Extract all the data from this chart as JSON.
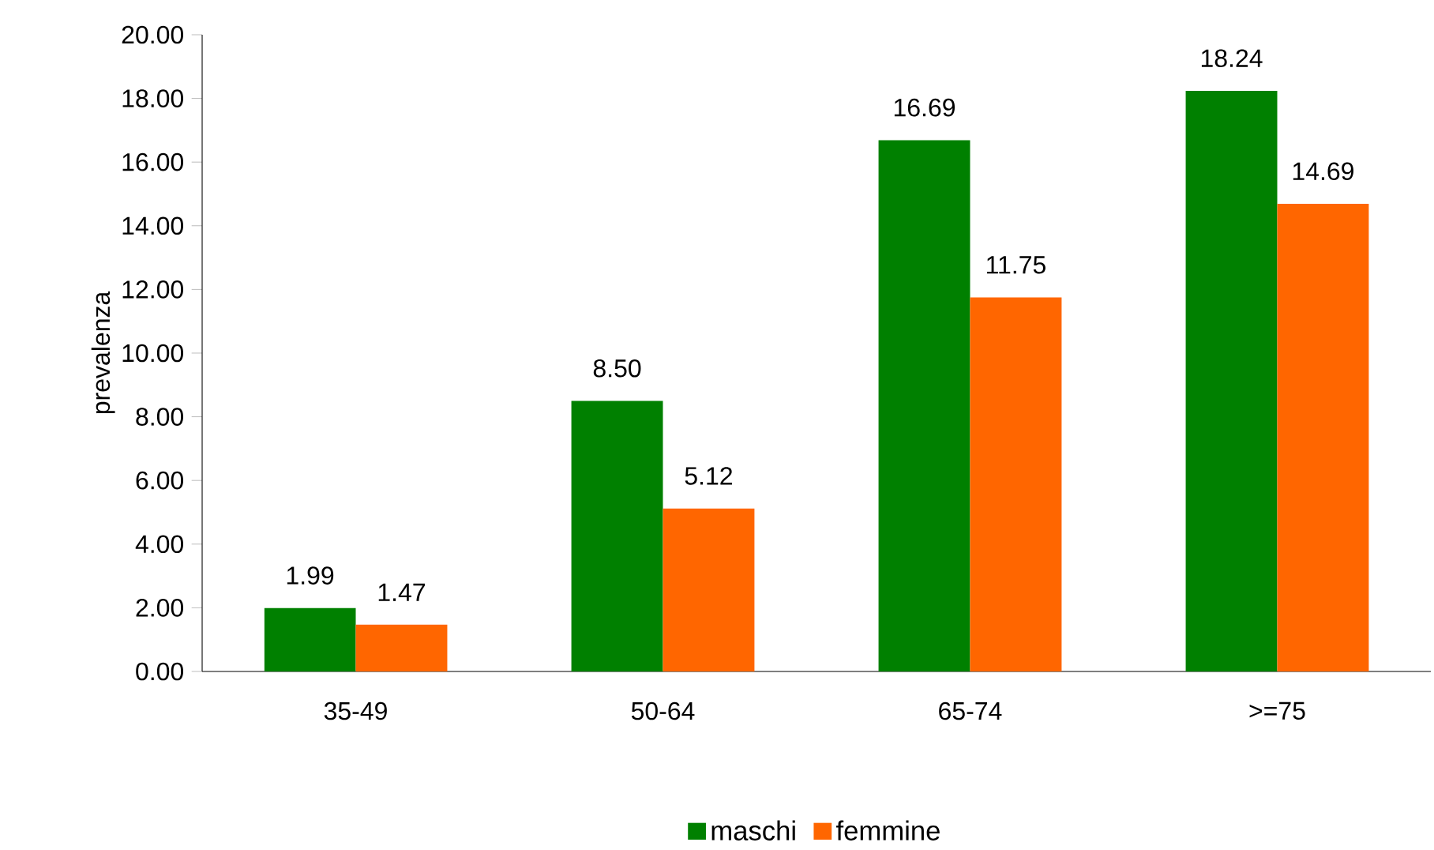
{
  "chart_data": {
    "type": "bar",
    "ylabel": "prevalenza",
    "categories": [
      "35-49",
      "50-64",
      "65-74",
      ">=75"
    ],
    "series": [
      {
        "name": "maschi",
        "color": "#008000",
        "values": [
          1.99,
          8.5,
          16.69,
          18.24
        ],
        "value_labels": [
          "1.99",
          "8.50",
          "16.69",
          "18.24"
        ]
      },
      {
        "name": "femmine",
        "color": "#ff6600",
        "values": [
          1.47,
          5.12,
          11.75,
          14.69
        ],
        "value_labels": [
          "1.47",
          "5.12",
          "11.75",
          "14.69"
        ]
      }
    ],
    "ylim": [
      0,
      20
    ],
    "yticks": [
      {
        "value": 0,
        "label": "0.00"
      },
      {
        "value": 2,
        "label": "2.00"
      },
      {
        "value": 4,
        "label": "4.00"
      },
      {
        "value": 6,
        "label": "6.00"
      },
      {
        "value": 8,
        "label": "8.00"
      },
      {
        "value": 10,
        "label": "10.00"
      },
      {
        "value": 12,
        "label": "12.00"
      },
      {
        "value": 14,
        "label": "14.00"
      },
      {
        "value": 16,
        "label": "16.00"
      },
      {
        "value": 18,
        "label": "18.00"
      },
      {
        "value": 20,
        "label": "20.00"
      }
    ],
    "grid": false,
    "legend": "bottom"
  }
}
